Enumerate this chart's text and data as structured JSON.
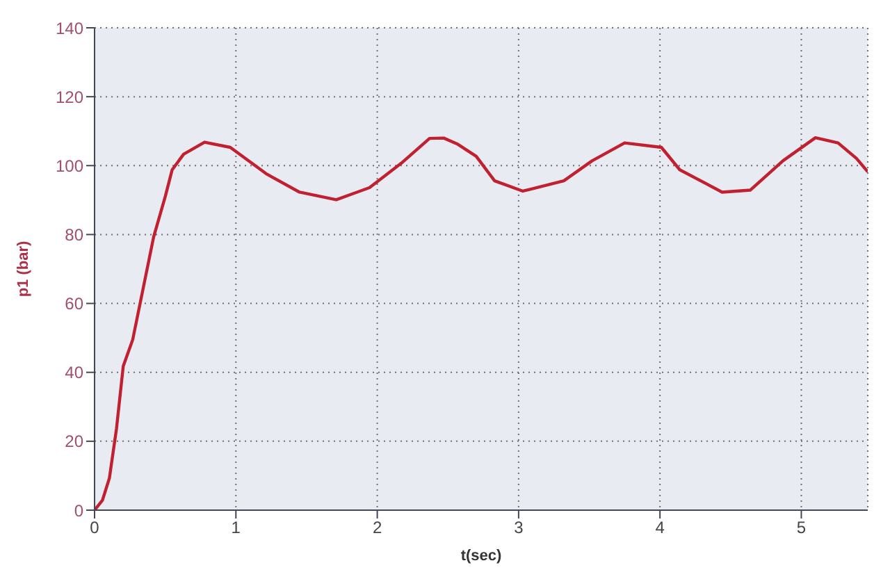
{
  "chart_data": {
    "type": "line",
    "xlabel": "t(sec)",
    "ylabel": "p1 (bar)",
    "x": [
      0,
      0.056,
      0.105,
      0.155,
      0.203,
      0.27,
      0.418,
      0.5,
      0.549,
      0.63,
      0.778,
      0.96,
      1.22,
      1.45,
      1.71,
      1.945,
      2.17,
      2.37,
      2.47,
      2.57,
      2.7,
      2.83,
      3.03,
      3.32,
      3.52,
      3.75,
      4.01,
      4.14,
      4.44,
      4.64,
      4.87,
      5.1,
      5.26,
      5.39,
      5.47
    ],
    "series": [
      {
        "color": "#c0202f",
        "values": [
          0,
          2.9,
          9.3,
          23.6,
          41.8,
          49.5,
          79.3,
          91,
          98.8,
          103.3,
          106.8,
          105.3,
          97.5,
          92.3,
          90.1,
          93.6,
          100.7,
          107.9,
          108,
          106.2,
          102.7,
          95.6,
          92.6,
          95.6,
          101.4,
          106.6,
          105.3,
          98.8,
          92.3,
          92.9,
          101.4,
          108.1,
          106.6,
          102.1,
          98.2
        ]
      }
    ],
    "xlim": [
      0,
      5.47
    ],
    "xticks": [
      0,
      1,
      2,
      3,
      4,
      5
    ],
    "ylim": [
      0,
      140
    ],
    "yticks": [
      0,
      20,
      40,
      60,
      80,
      100,
      120,
      140
    ],
    "grid": true,
    "marker": "none",
    "line_style": "solid"
  }
}
